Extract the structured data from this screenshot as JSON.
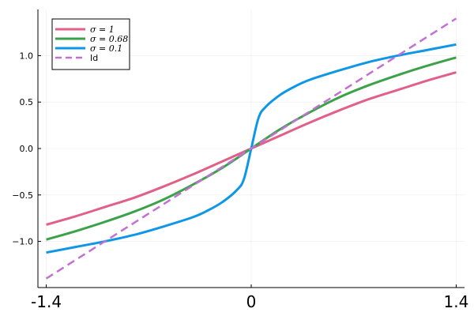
{
  "chart_data": {
    "type": "line",
    "title": "",
    "xlabel": "",
    "ylabel": "",
    "xlim": [
      -1.4,
      1.4
    ],
    "ylim": [
      -1.5,
      1.5
    ],
    "grid": true,
    "legend_position": "top-left",
    "x_ticks": [
      {
        "value": -1.4,
        "label": "-1.4"
      },
      {
        "value": 0,
        "label": "0"
      },
      {
        "value": 1.4,
        "label": "1.4"
      }
    ],
    "y_ticks": [
      {
        "value": 1.0,
        "label": "1.0"
      },
      {
        "value": 0.5,
        "label": "0.5"
      },
      {
        "value": 0.0,
        "label": "0.0"
      },
      {
        "value": -0.5,
        "label": "-0.5"
      },
      {
        "value": -1.0,
        "label": "-1.0"
      }
    ],
    "series": [
      {
        "name": "σ = 1",
        "color": "#e26088",
        "dash": "solid",
        "x": [
          -1.4,
          -1.2,
          -1.0,
          -0.8,
          -0.6,
          -0.4,
          -0.2,
          0.0,
          0.2,
          0.4,
          0.6,
          0.8,
          1.0,
          1.2,
          1.4
        ],
        "y": [
          -0.82,
          -0.73,
          -0.63,
          -0.53,
          -0.41,
          -0.28,
          -0.14,
          0.0,
          0.14,
          0.28,
          0.41,
          0.53,
          0.63,
          0.73,
          0.82
        ]
      },
      {
        "name": "σ = 0.68",
        "color": "#3ca24a",
        "dash": "solid",
        "x": [
          -1.4,
          -1.2,
          -1.0,
          -0.8,
          -0.6,
          -0.4,
          -0.2,
          0.0,
          0.2,
          0.4,
          0.6,
          0.8,
          1.0,
          1.2,
          1.4
        ],
        "y": [
          -0.98,
          -0.89,
          -0.79,
          -0.68,
          -0.55,
          -0.39,
          -0.21,
          0.0,
          0.21,
          0.39,
          0.55,
          0.68,
          0.79,
          0.89,
          0.98
        ]
      },
      {
        "name": "σ = 0.1",
        "color": "#0e96e8",
        "dash": "solid",
        "x": [
          -1.4,
          -1.2,
          -1.0,
          -0.8,
          -0.6,
          -0.4,
          -0.3,
          -0.2,
          -0.1,
          -0.05,
          0.0,
          0.05,
          0.1,
          0.2,
          0.3,
          0.4,
          0.6,
          0.8,
          1.0,
          1.2,
          1.4
        ],
        "y": [
          -1.12,
          -1.06,
          -1.0,
          -0.93,
          -0.84,
          -0.74,
          -0.67,
          -0.58,
          -0.45,
          -0.33,
          0.0,
          0.33,
          0.45,
          0.58,
          0.67,
          0.74,
          0.84,
          0.93,
          1.0,
          1.06,
          1.12
        ]
      },
      {
        "name": "Id",
        "color": "#c271d2",
        "dash": "dashed",
        "x": [
          -1.4,
          1.4
        ],
        "y": [
          -1.4,
          1.4
        ]
      }
    ]
  }
}
